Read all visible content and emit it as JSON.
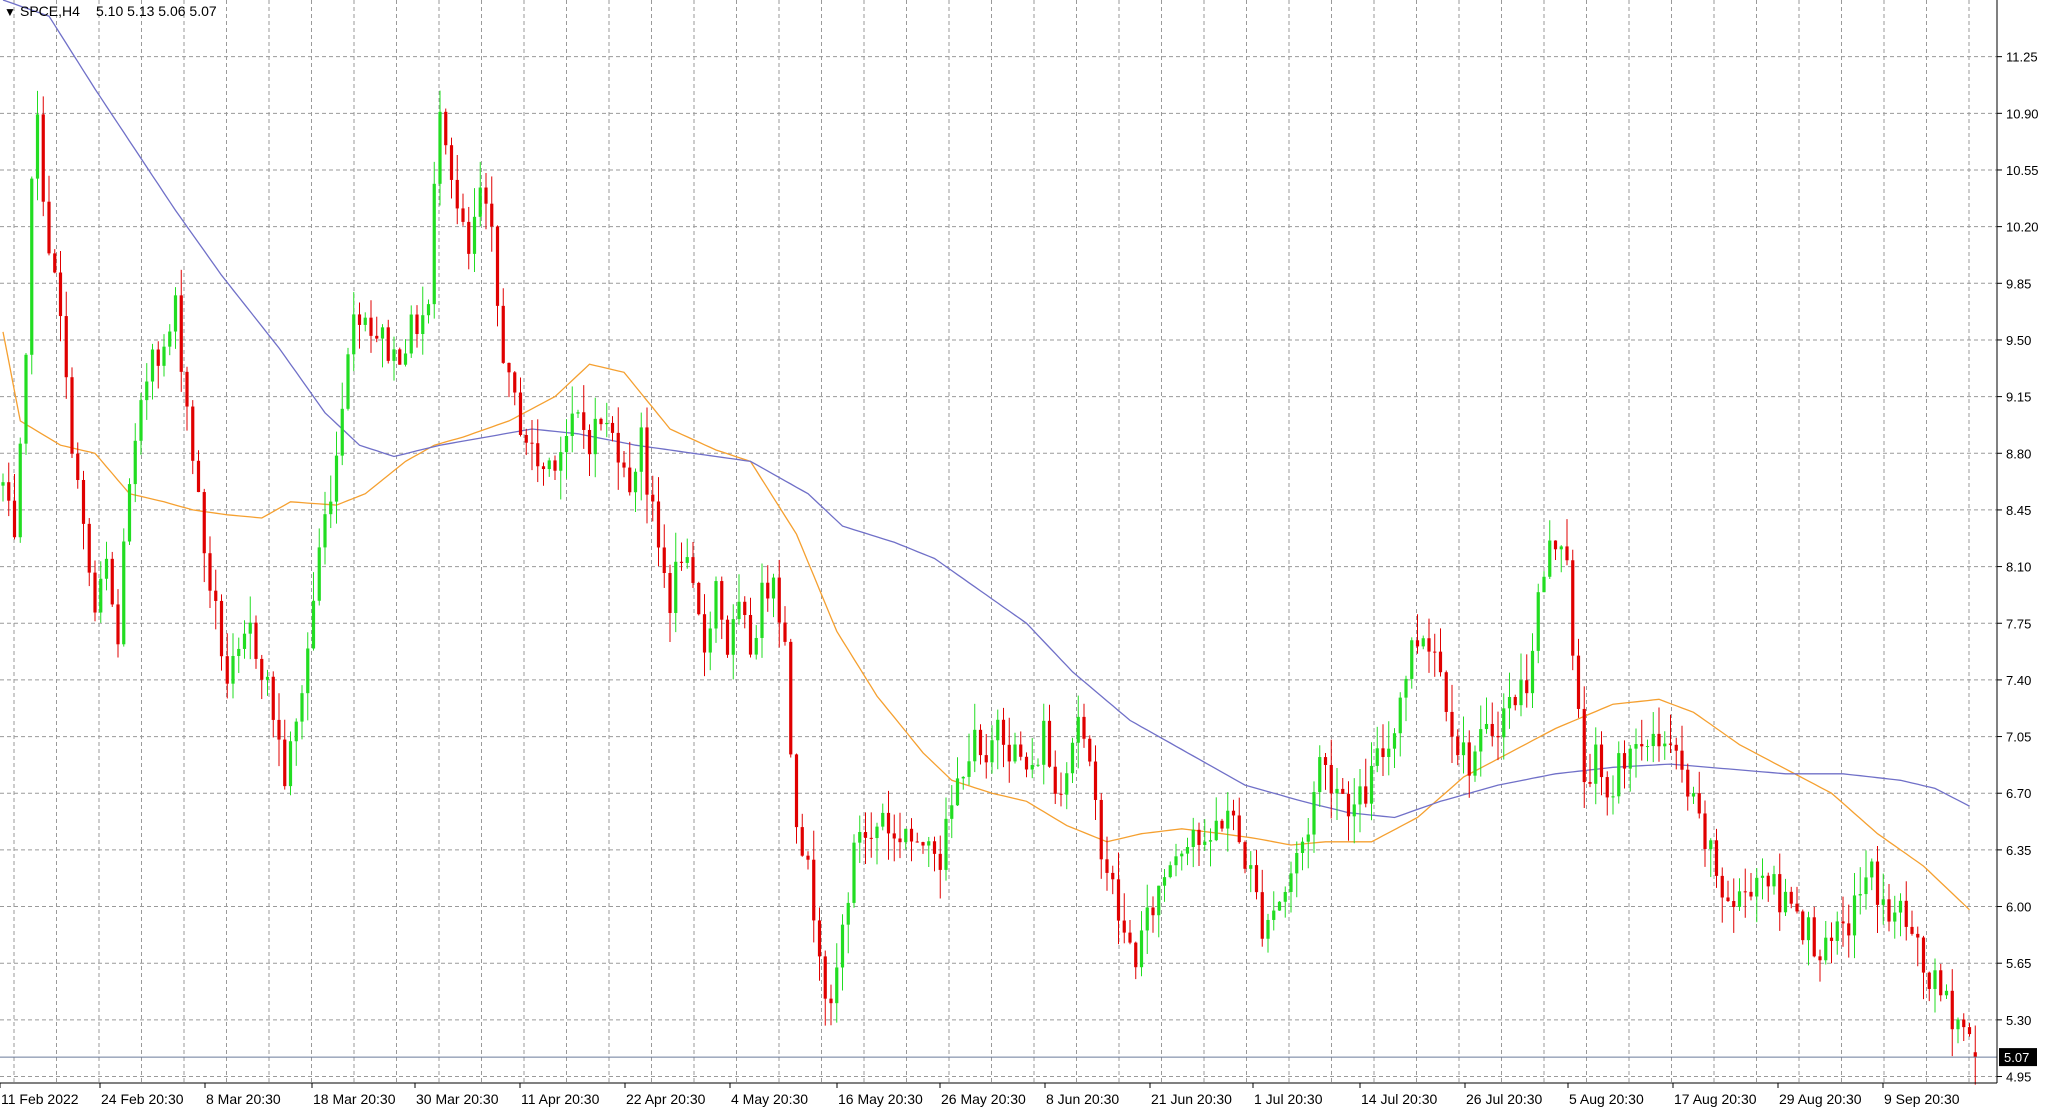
{
  "header": {
    "marker": "▼",
    "symbol": "SPCE,H4",
    "ohlc": "5.10 5.13 5.06 5.07"
  },
  "colors": {
    "background": "#ffffff",
    "grid": "#9a9a9a",
    "bull": "#22dd22",
    "bear": "#e00000",
    "ma_fast": "#f5a030",
    "ma_slow": "#7070c8",
    "price_line": "#6a7a9a",
    "price_box": "#000000",
    "axis_text": "#000000"
  },
  "chart_data": {
    "type": "candlestick",
    "title": "SPCE,H4",
    "y_axis": {
      "ticks": [
        "11.25",
        "10.90",
        "10.55",
        "10.20",
        "9.85",
        "9.50",
        "9.15",
        "8.80",
        "8.45",
        "8.10",
        "7.75",
        "7.40",
        "7.05",
        "6.70",
        "6.35",
        "6.00",
        "5.65",
        "5.30",
        "4.95"
      ],
      "ylim": [
        4.91,
        11.6
      ],
      "position": "right"
    },
    "x_axis": {
      "ticks": [
        "11 Feb 2022",
        "24 Feb 20:30",
        "8 Mar 20:30",
        "18 Mar 20:30",
        "30 Mar 20:30",
        "11 Apr 20:30",
        "22 Apr 20:30",
        "4 May 20:30",
        "16 May 20:30",
        "26 May 20:30",
        "8 Jun 20:30",
        "21 Jun 20:30",
        "1 Jul 20:30",
        "14 Jul 20:30",
        "26 Jul 20:30",
        "5 Aug 20:30",
        "17 Aug 20:30",
        "29 Aug 20:30",
        "9 Sep 20:30"
      ]
    },
    "grid": true,
    "current_price": "5.07",
    "anchors": [
      [
        0,
        8.6
      ],
      [
        2,
        8.2
      ],
      [
        4,
        9.3
      ],
      [
        5,
        10.6
      ],
      [
        6,
        10.8
      ],
      [
        8,
        10.1
      ],
      [
        10,
        9.6
      ],
      [
        11,
        9.2
      ],
      [
        12,
        8.9
      ],
      [
        14,
        8.3
      ],
      [
        16,
        7.8
      ],
      [
        18,
        8.1
      ],
      [
        20,
        7.6
      ],
      [
        21,
        8.3
      ],
      [
        23,
        8.8
      ],
      [
        26,
        9.5
      ],
      [
        28,
        9.4
      ],
      [
        30,
        9.7
      ],
      [
        32,
        9.1
      ],
      [
        34,
        8.5
      ],
      [
        35,
        8.2
      ],
      [
        37,
        7.8
      ],
      [
        39,
        7.4
      ],
      [
        41,
        7.5
      ],
      [
        43,
        7.7
      ],
      [
        45,
        7.5
      ],
      [
        47,
        7.2
      ],
      [
        49,
        6.8
      ],
      [
        51,
        7.1
      ],
      [
        53,
        7.6
      ],
      [
        55,
        8.2
      ],
      [
        58,
        8.8
      ],
      [
        60,
        9.5
      ],
      [
        62,
        9.7
      ],
      [
        64,
        9.6
      ],
      [
        66,
        9.5
      ],
      [
        68,
        9.4
      ],
      [
        70,
        9.5
      ],
      [
        72,
        9.6
      ],
      [
        74,
        9.7
      ],
      [
        75,
        10.4
      ],
      [
        76,
        11.0
      ],
      [
        77,
        10.8
      ],
      [
        79,
        10.3
      ],
      [
        81,
        10.0
      ],
      [
        83,
        10.4
      ],
      [
        85,
        10.1
      ],
      [
        86,
        9.7
      ],
      [
        88,
        9.2
      ],
      [
        90,
        9.0
      ],
      [
        92,
        8.8
      ],
      [
        94,
        8.7
      ],
      [
        96,
        8.8
      ],
      [
        98,
        8.9
      ],
      [
        100,
        9.0
      ],
      [
        102,
        8.9
      ],
      [
        104,
        9.0
      ],
      [
        106,
        8.9
      ],
      [
        108,
        8.8
      ],
      [
        109,
        8.5
      ],
      [
        111,
        9.0
      ],
      [
        112,
        8.6
      ],
      [
        114,
        8.2
      ],
      [
        116,
        7.9
      ],
      [
        118,
        8.2
      ],
      [
        120,
        7.9
      ],
      [
        122,
        7.6
      ],
      [
        124,
        8.0
      ],
      [
        126,
        7.6
      ],
      [
        128,
        7.8
      ],
      [
        130,
        7.6
      ],
      [
        132,
        7.9
      ],
      [
        134,
        8.1
      ],
      [
        136,
        7.6
      ],
      [
        137,
        7.0
      ],
      [
        138,
        6.6
      ],
      [
        140,
        6.2
      ],
      [
        142,
        5.8
      ],
      [
        143,
        5.5
      ],
      [
        144,
        5.3
      ],
      [
        145,
        5.6
      ],
      [
        147,
        6.1
      ],
      [
        149,
        6.5
      ],
      [
        151,
        6.4
      ],
      [
        153,
        6.6
      ],
      [
        155,
        6.4
      ],
      [
        157,
        6.5
      ],
      [
        159,
        6.3
      ],
      [
        161,
        6.5
      ],
      [
        163,
        6.3
      ],
      [
        165,
        6.6
      ],
      [
        167,
        6.9
      ],
      [
        169,
        7.0
      ],
      [
        171,
        6.8
      ],
      [
        173,
        7.2
      ],
      [
        175,
        7.0
      ],
      [
        177,
        6.9
      ],
      [
        179,
        6.8
      ],
      [
        181,
        7.1
      ],
      [
        183,
        6.7
      ],
      [
        185,
        6.9
      ],
      [
        187,
        7.2
      ],
      [
        189,
        6.8
      ],
      [
        191,
        6.4
      ],
      [
        193,
        6.1
      ],
      [
        195,
        5.8
      ],
      [
        197,
        5.7
      ],
      [
        199,
        5.9
      ],
      [
        201,
        6.1
      ],
      [
        203,
        6.3
      ],
      [
        205,
        6.4
      ],
      [
        207,
        6.5
      ],
      [
        209,
        6.3
      ],
      [
        211,
        6.5
      ],
      [
        213,
        6.6
      ],
      [
        215,
        6.4
      ],
      [
        217,
        6.2
      ],
      [
        219,
        5.9
      ],
      [
        221,
        6.0
      ],
      [
        223,
        6.1
      ],
      [
        225,
        6.3
      ],
      [
        227,
        6.5
      ],
      [
        229,
        6.9
      ],
      [
        231,
        6.8
      ],
      [
        233,
        6.7
      ],
      [
        235,
        6.6
      ],
      [
        237,
        6.7
      ],
      [
        239,
        6.9
      ],
      [
        241,
        7.0
      ],
      [
        243,
        7.3
      ],
      [
        245,
        7.6
      ],
      [
        247,
        7.7
      ],
      [
        249,
        7.6
      ],
      [
        251,
        7.3
      ],
      [
        253,
        7.0
      ],
      [
        255,
        6.9
      ],
      [
        257,
        7.0
      ],
      [
        259,
        7.1
      ],
      [
        261,
        7.2
      ],
      [
        263,
        7.3
      ],
      [
        265,
        7.4
      ],
      [
        267,
        7.9
      ],
      [
        269,
        8.2
      ],
      [
        271,
        8.3
      ],
      [
        272,
        8.2
      ],
      [
        273,
        7.5
      ],
      [
        275,
        6.8
      ],
      [
        277,
        6.9
      ],
      [
        279,
        6.6
      ],
      [
        281,
        6.9
      ],
      [
        283,
        7.0
      ],
      [
        285,
        6.9
      ],
      [
        287,
        7.1
      ],
      [
        289,
        7.0
      ],
      [
        291,
        6.9
      ],
      [
        293,
        6.7
      ],
      [
        295,
        6.5
      ],
      [
        297,
        6.3
      ],
      [
        299,
        6.1
      ],
      [
        301,
        6.0
      ],
      [
        303,
        6.1
      ],
      [
        305,
        6.2
      ],
      [
        307,
        6.2
      ],
      [
        309,
        6.0
      ],
      [
        311,
        6.1
      ],
      [
        313,
        5.9
      ],
      [
        315,
        5.8
      ],
      [
        317,
        5.7
      ],
      [
        319,
        5.8
      ],
      [
        321,
        5.9
      ],
      [
        323,
        6.1
      ],
      [
        325,
        6.2
      ],
      [
        327,
        6.0
      ],
      [
        329,
        5.9
      ],
      [
        330,
        6.0
      ],
      [
        332,
        5.8
      ],
      [
        334,
        5.6
      ],
      [
        336,
        5.5
      ],
      [
        338,
        5.4
      ],
      [
        340,
        5.3
      ],
      [
        342,
        5.2
      ],
      [
        343,
        5.07
      ]
    ],
    "series": [
      {
        "type": "line",
        "knots": [
          [
            0,
            9.55
          ],
          [
            3,
            9.0
          ],
          [
            10,
            8.85
          ],
          [
            16,
            8.8
          ],
          [
            22,
            8.55
          ],
          [
            28,
            8.5
          ],
          [
            33,
            8.45
          ],
          [
            39,
            8.42
          ],
          [
            45,
            8.4
          ],
          [
            50,
            8.5
          ],
          [
            58,
            8.48
          ],
          [
            63,
            8.55
          ],
          [
            70,
            8.75
          ],
          [
            75,
            8.85
          ],
          [
            80,
            8.9
          ],
          [
            88,
            9.0
          ],
          [
            96,
            9.15
          ],
          [
            102,
            9.35
          ],
          [
            108,
            9.3
          ],
          [
            116,
            8.95
          ],
          [
            124,
            8.82
          ],
          [
            130,
            8.75
          ],
          [
            138,
            8.3
          ],
          [
            145,
            7.7
          ],
          [
            152,
            7.3
          ],
          [
            160,
            6.95
          ],
          [
            165,
            6.78
          ],
          [
            172,
            6.7
          ],
          [
            178,
            6.65
          ],
          [
            185,
            6.5
          ],
          [
            192,
            6.4
          ],
          [
            198,
            6.45
          ],
          [
            205,
            6.48
          ],
          [
            212,
            6.45
          ],
          [
            218,
            6.42
          ],
          [
            224,
            6.38
          ],
          [
            230,
            6.4
          ],
          [
            238,
            6.4
          ],
          [
            246,
            6.55
          ],
          [
            254,
            6.8
          ],
          [
            262,
            6.95
          ],
          [
            270,
            7.1
          ],
          [
            280,
            7.25
          ],
          [
            288,
            7.28
          ],
          [
            294,
            7.2
          ],
          [
            302,
            7.0
          ],
          [
            310,
            6.85
          ],
          [
            318,
            6.7
          ],
          [
            326,
            6.45
          ],
          [
            334,
            6.25
          ],
          [
            342,
            5.98
          ]
        ]
      },
      {
        "type": "line",
        "knots": [
          [
            0,
            11.6
          ],
          [
            8,
            11.5
          ],
          [
            16,
            11.05
          ],
          [
            30,
            10.3
          ],
          [
            38,
            9.9
          ],
          [
            48,
            9.45
          ],
          [
            56,
            9.05
          ],
          [
            62,
            8.85
          ],
          [
            68,
            8.78
          ],
          [
            76,
            8.85
          ],
          [
            84,
            8.9
          ],
          [
            92,
            8.95
          ],
          [
            100,
            8.92
          ],
          [
            110,
            8.85
          ],
          [
            120,
            8.8
          ],
          [
            130,
            8.75
          ],
          [
            140,
            8.55
          ],
          [
            146,
            8.35
          ],
          [
            155,
            8.25
          ],
          [
            162,
            8.15
          ],
          [
            170,
            7.95
          ],
          [
            178,
            7.75
          ],
          [
            186,
            7.45
          ],
          [
            196,
            7.15
          ],
          [
            206,
            6.95
          ],
          [
            216,
            6.75
          ],
          [
            226,
            6.65
          ],
          [
            234,
            6.58
          ],
          [
            242,
            6.55
          ],
          [
            250,
            6.65
          ],
          [
            260,
            6.75
          ],
          [
            270,
            6.82
          ],
          [
            280,
            6.86
          ],
          [
            290,
            6.88
          ],
          [
            300,
            6.85
          ],
          [
            310,
            6.82
          ],
          [
            320,
            6.82
          ],
          [
            330,
            6.78
          ],
          [
            336,
            6.73
          ],
          [
            342,
            6.62
          ]
        ]
      }
    ]
  }
}
